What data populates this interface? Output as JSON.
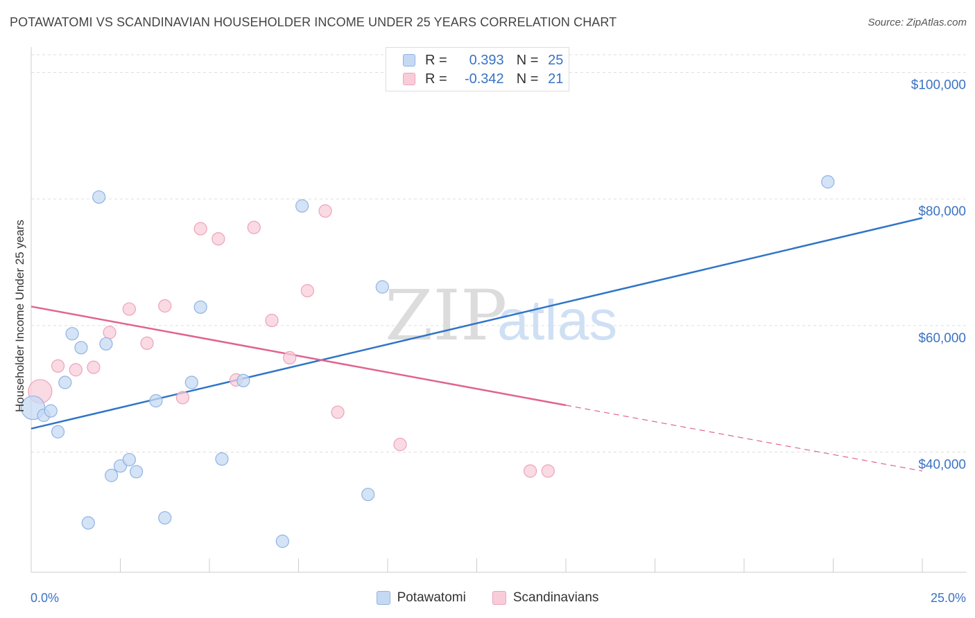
{
  "title": "POTAWATOMI VS SCANDINAVIAN HOUSEHOLDER INCOME UNDER 25 YEARS CORRELATION CHART",
  "source": "Source: ZipAtlas.com",
  "watermark": {
    "zip": "ZIP",
    "atlas": "atlas"
  },
  "legend": {
    "r_label": "R =",
    "n_label": "N =",
    "series": [
      {
        "name": "Potawatomi",
        "r": "0.393",
        "n": "25"
      },
      {
        "name": "Scandinavians",
        "r": "-0.342",
        "n": "21"
      }
    ]
  },
  "colors": {
    "potawatomi_fill": "#c5d9f3",
    "potawatomi_stroke": "#8fb3e3",
    "potawatomi_line": "#2f74c8",
    "scandinavian_fill": "#f8cdd9",
    "scandinavian_stroke": "#eea2b9",
    "scandinavian_line": "#e0648e",
    "tick_text": "#3a72c4"
  },
  "chart_data": {
    "type": "scatter",
    "xlabel": "",
    "ylabel": "Householder Income Under 25 years",
    "x_tick_labels": [
      "0.0%",
      "25.0%"
    ],
    "y_ticks": [
      {
        "value": 40000,
        "label": "$40,000"
      },
      {
        "value": 60000,
        "label": "$60,000"
      },
      {
        "value": 80000,
        "label": "$80,000"
      },
      {
        "value": 100000,
        "label": "$100,000"
      }
    ],
    "xlim": [
      0,
      25
    ],
    "ylim": [
      21000,
      104000
    ],
    "grid": true,
    "legend_position": "top-center",
    "series": [
      {
        "name": "Potawatomi",
        "points": [
          {
            "x": 0.05,
            "y": 47000,
            "big": true
          },
          {
            "x": 0.35,
            "y": 45800
          },
          {
            "x": 0.55,
            "y": 46500
          },
          {
            "x": 0.75,
            "y": 43200
          },
          {
            "x": 0.95,
            "y": 51000
          },
          {
            "x": 1.15,
            "y": 58700
          },
          {
            "x": 1.4,
            "y": 56500
          },
          {
            "x": 1.6,
            "y": 28800
          },
          {
            "x": 1.9,
            "y": 80300
          },
          {
            "x": 2.1,
            "y": 57100
          },
          {
            "x": 2.25,
            "y": 36300
          },
          {
            "x": 2.5,
            "y": 37800
          },
          {
            "x": 2.75,
            "y": 38800
          },
          {
            "x": 2.95,
            "y": 36900
          },
          {
            "x": 3.5,
            "y": 48100
          },
          {
            "x": 3.75,
            "y": 29600
          },
          {
            "x": 4.5,
            "y": 51000
          },
          {
            "x": 4.75,
            "y": 62900
          },
          {
            "x": 5.35,
            "y": 38900
          },
          {
            "x": 5.95,
            "y": 51300
          },
          {
            "x": 7.05,
            "y": 25900
          },
          {
            "x": 7.6,
            "y": 78900
          },
          {
            "x": 9.45,
            "y": 33300
          },
          {
            "x": 9.85,
            "y": 66100
          },
          {
            "x": 22.35,
            "y": 82700
          }
        ],
        "trend": {
          "x0": 0,
          "y0": 43700,
          "x1": 25,
          "y1": 77000,
          "solid_until": 25
        }
      },
      {
        "name": "Scandinavians",
        "points": [
          {
            "x": 0.25,
            "y": 49600,
            "big": true
          },
          {
            "x": 0.75,
            "y": 53600
          },
          {
            "x": 1.25,
            "y": 53000
          },
          {
            "x": 1.75,
            "y": 53400
          },
          {
            "x": 2.2,
            "y": 58900
          },
          {
            "x": 2.75,
            "y": 62600
          },
          {
            "x": 3.25,
            "y": 57200
          },
          {
            "x": 3.75,
            "y": 63100
          },
          {
            "x": 4.25,
            "y": 48600
          },
          {
            "x": 4.75,
            "y": 75300
          },
          {
            "x": 5.25,
            "y": 73700
          },
          {
            "x": 5.75,
            "y": 51400
          },
          {
            "x": 6.25,
            "y": 75500
          },
          {
            "x": 6.75,
            "y": 60800
          },
          {
            "x": 7.25,
            "y": 54900
          },
          {
            "x": 7.75,
            "y": 65500
          },
          {
            "x": 8.25,
            "y": 78100
          },
          {
            "x": 8.6,
            "y": 46300
          },
          {
            "x": 10.35,
            "y": 41200
          },
          {
            "x": 14.0,
            "y": 37000
          },
          {
            "x": 14.5,
            "y": 37000
          }
        ],
        "trend": {
          "x0": 0,
          "y0": 63000,
          "x1": 25,
          "y1": 37000,
          "solid_until": 15
        }
      }
    ]
  }
}
